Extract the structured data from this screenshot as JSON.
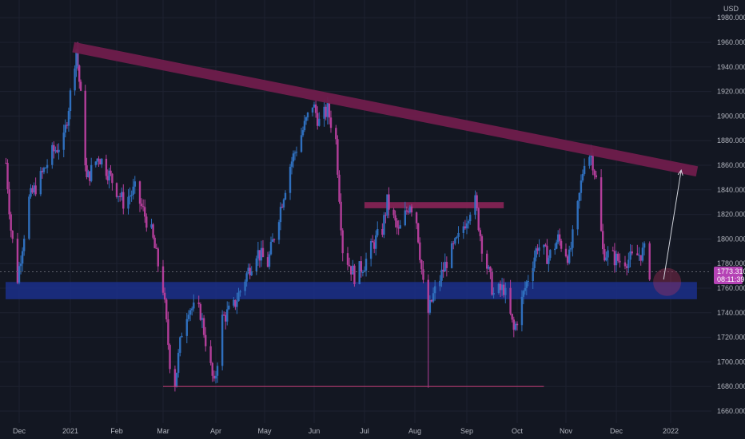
{
  "chart_data": {
    "type": "candlestick",
    "currency": "USD",
    "ylim": [
      1650,
      1990
    ],
    "grid": true,
    "y_ticks": [
      "1980.000",
      "1960.000",
      "1940.000",
      "1920.000",
      "1900.000",
      "1880.000",
      "1860.000",
      "1840.000",
      "1820.000",
      "1800.000",
      "1780.000",
      "1760.000",
      "1740.000",
      "1720.000",
      "1700.000",
      "1680.000",
      "1660.000"
    ],
    "y_tick_values": [
      1980,
      1960,
      1940,
      1920,
      1900,
      1880,
      1860,
      1840,
      1820,
      1800,
      1780,
      1760,
      1740,
      1720,
      1700,
      1680,
      1660
    ],
    "x_ticks": [
      "Dec",
      "2021",
      "Feb",
      "Mar",
      "Apr",
      "May",
      "Jun",
      "Jul",
      "Aug",
      "Sep",
      "Oct",
      "Nov",
      "Dec",
      "2022"
    ],
    "x_tick_dates": [
      "2020-12-01",
      "2021-01-01",
      "2021-02-01",
      "2021-03-01",
      "2021-04-01",
      "2021-05-01",
      "2021-06-01",
      "2021-07-01",
      "2021-08-01",
      "2021-09-01",
      "2021-10-01",
      "2021-11-01",
      "2021-12-01",
      "2022-01-01"
    ],
    "date_range": [
      "2020-11-23",
      "2022-01-31"
    ],
    "last_price": "1773.310",
    "countdown": "08:11:39",
    "price_path": [
      [
        "2020-11-23",
        1862
      ],
      [
        "2020-11-26",
        1808
      ],
      [
        "2020-11-30",
        1768
      ],
      [
        "2020-12-07",
        1832
      ],
      [
        "2020-12-14",
        1850
      ],
      [
        "2020-12-21",
        1870
      ],
      [
        "2020-12-28",
        1880
      ],
      [
        "2021-01-05",
        1955
      ],
      [
        "2021-01-08",
        1915
      ],
      [
        "2021-01-12",
        1848
      ],
      [
        "2021-01-20",
        1868
      ],
      [
        "2021-01-28",
        1850
      ],
      [
        "2021-02-05",
        1830
      ],
      [
        "2021-02-12",
        1840
      ],
      [
        "2021-02-22",
        1805
      ],
      [
        "2021-03-01",
        1760
      ],
      [
        "2021-03-05",
        1700
      ],
      [
        "2021-03-08",
        1683
      ],
      [
        "2021-03-12",
        1725
      ],
      [
        "2021-03-16",
        1745
      ],
      [
        "2021-03-23",
        1740
      ],
      [
        "2021-03-31",
        1680
      ],
      [
        "2021-04-05",
        1735
      ],
      [
        "2021-04-12",
        1745
      ],
      [
        "2021-04-19",
        1768
      ],
      [
        "2021-04-26",
        1790
      ],
      [
        "2021-05-03",
        1780
      ],
      [
        "2021-05-10",
        1820
      ],
      [
        "2021-05-17",
        1860
      ],
      [
        "2021-05-24",
        1885
      ],
      [
        "2021-05-31",
        1910
      ],
      [
        "2021-06-04",
        1895
      ],
      [
        "2021-06-09",
        1905
      ],
      [
        "2021-06-14",
        1880
      ],
      [
        "2021-06-18",
        1792
      ],
      [
        "2021-06-25",
        1770
      ],
      [
        "2021-07-01",
        1780
      ],
      [
        "2021-07-06",
        1795
      ],
      [
        "2021-07-12",
        1808
      ],
      [
        "2021-07-15",
        1830
      ],
      [
        "2021-07-22",
        1805
      ],
      [
        "2021-07-29",
        1830
      ],
      [
        "2021-08-02",
        1815
      ],
      [
        "2021-08-06",
        1762
      ],
      [
        "2021-08-09",
        1740
      ],
      [
        "2021-08-12",
        1754
      ],
      [
        "2021-08-20",
        1782
      ],
      [
        "2021-08-27",
        1800
      ],
      [
        "2021-09-03",
        1825
      ],
      [
        "2021-09-06",
        1830
      ],
      [
        "2021-09-10",
        1795
      ],
      [
        "2021-09-17",
        1755
      ],
      [
        "2021-09-23",
        1760
      ],
      [
        "2021-09-29",
        1725
      ],
      [
        "2021-10-06",
        1760
      ],
      [
        "2021-10-14",
        1795
      ],
      [
        "2021-10-21",
        1785
      ],
      [
        "2021-10-27",
        1800
      ],
      [
        "2021-11-03",
        1785
      ],
      [
        "2021-11-08",
        1825
      ],
      [
        "2021-11-12",
        1865
      ],
      [
        "2021-11-16",
        1870
      ],
      [
        "2021-11-19",
        1848
      ],
      [
        "2021-11-23",
        1790
      ],
      [
        "2021-11-29",
        1785
      ],
      [
        "2021-12-03",
        1782
      ],
      [
        "2021-12-10",
        1784
      ],
      [
        "2021-12-17",
        1790
      ],
      [
        "2021-12-20",
        1773
      ]
    ]
  },
  "annotations": {
    "trendline": {
      "start": [
        "2021-01-03",
        1956
      ],
      "end": [
        "2022-01-16",
        1855
      ],
      "color": "#6f1d4c"
    },
    "resistance_zone": {
      "x": [
        "2021-07-01",
        "2021-09-23"
      ],
      "y": [
        1830,
        1825
      ],
      "color": "#8a2357"
    },
    "support_zone": {
      "x": [
        "2020-11-24",
        "2022-01-16"
      ],
      "y": [
        1765,
        1751
      ],
      "color": "#1b2f8a"
    },
    "low_line": {
      "x": [
        "2021-03-01",
        "2021-10-18"
      ],
      "y": 1680,
      "color": "#b03a6e"
    },
    "projection_arrow": {
      "from": [
        "2021-12-28",
        1767
      ],
      "to": [
        "2022-01-07",
        1856
      ]
    },
    "target_circle": {
      "center": [
        "2021-12-30",
        1765
      ],
      "radius_pct": 2.0,
      "color": "#b7335e"
    },
    "current_price_line": 1773.31
  },
  "colors": {
    "background": "#131722",
    "up": "#2f6fbd",
    "down": "#b33e9a",
    "grid": "#1e2230",
    "text": "#b2b5be",
    "price_tag": "#b543b5"
  }
}
